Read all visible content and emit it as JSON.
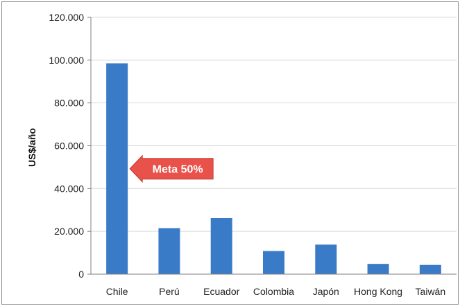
{
  "chart_data": {
    "type": "bar",
    "title": "",
    "xlabel": "",
    "ylabel": "US$/año",
    "categories": [
      "Chile",
      "Perú",
      "Ecuador",
      "Colombia",
      "Japón",
      "Hong Kong",
      "Taiwán"
    ],
    "values": [
      98500,
      21500,
      26200,
      10800,
      13800,
      4800,
      4300
    ],
    "ylim": [
      0,
      120000
    ],
    "yticks": [
      0,
      20000,
      40000,
      60000,
      80000,
      100000,
      120000
    ],
    "ytick_labels": [
      "0",
      "20.000",
      "40.000",
      "60.000",
      "80.000",
      "100.000",
      "120.000"
    ],
    "grid": true,
    "bar_color": "#3a7bc8",
    "annotation": {
      "text": "Meta 50%",
      "value": 49250,
      "category": "Chile",
      "arrow_color": "#e8524a"
    }
  }
}
